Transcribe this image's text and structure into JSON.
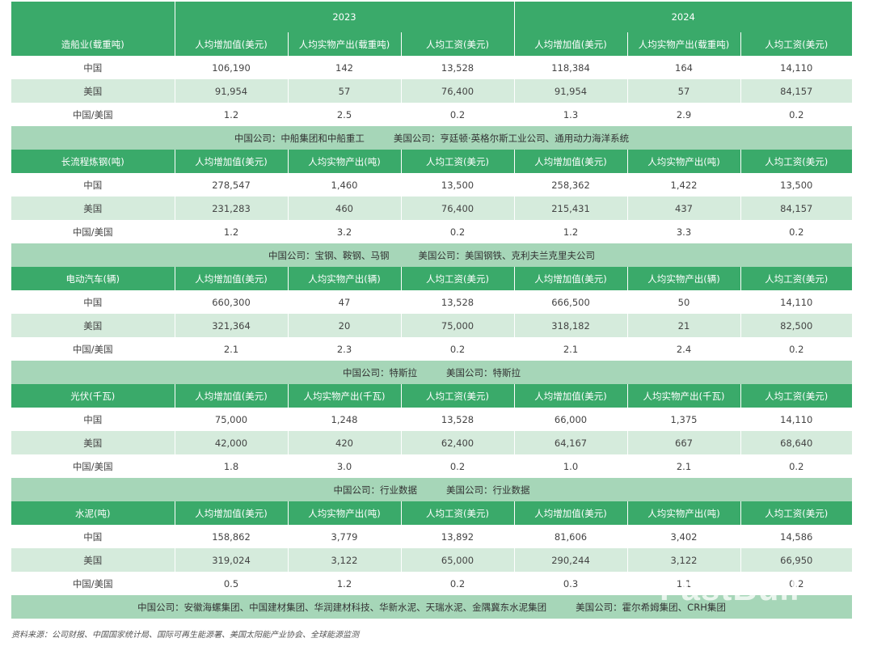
{
  "years": [
    "2023",
    "2024"
  ],
  "sections": [
    {
      "industry": "造船业(载重吨)",
      "headers": [
        "人均增加值(美元)",
        "人均实物产出(载重吨)",
        "人均工资(美元)",
        "人均增加值(美元)",
        "人均实物产出(载重吨)",
        "人均工资(美元)"
      ],
      "rows": [
        {
          "label": "中国",
          "values": [
            "106,190",
            "142",
            "13,528",
            "118,384",
            "164",
            "14,110"
          ]
        },
        {
          "label": "美国",
          "values": [
            "91,954",
            "57",
            "76,400",
            "91,954",
            "57",
            "84,157"
          ]
        },
        {
          "label": "中国/美国",
          "values": [
            "1.2",
            "2.5",
            "0.2",
            "1.3",
            "2.9",
            "0.2"
          ]
        }
      ],
      "note_cn": "中国公司：中船集团和中船重工",
      "note_us": "美国公司：亨廷顿·英格尔斯工业公司、通用动力海洋系统"
    },
    {
      "industry": "长流程炼钢(吨)",
      "headers": [
        "人均增加值(美元)",
        "人均实物产出(吨)",
        "人均工资(美元)",
        "人均增加值(美元)",
        "人均实物产出(吨)",
        "人均工资(美元)"
      ],
      "rows": [
        {
          "label": "中国",
          "values": [
            "278,547",
            "1,460",
            "13,500",
            "258,362",
            "1,422",
            "13,500"
          ]
        },
        {
          "label": "美国",
          "values": [
            "231,283",
            "460",
            "76,400",
            "215,431",
            "437",
            "84,157"
          ]
        },
        {
          "label": "中国/美国",
          "values": [
            "1.2",
            "3.2",
            "0.2",
            "1.2",
            "3.3",
            "0.2"
          ]
        }
      ],
      "note_cn": "中国公司：宝钢、鞍钢、马钢",
      "note_us": "美国公司：美国钢铁、克利夫兰克里夫公司"
    },
    {
      "industry": "电动汽车(辆)",
      "headers": [
        "人均增加值(美元)",
        "人均实物产出(辆)",
        "人均工资(美元)",
        "人均增加值(美元)",
        "人均实物产出(辆)",
        "人均工资(美元)"
      ],
      "rows": [
        {
          "label": "中国",
          "values": [
            "660,300",
            "47",
            "13,528",
            "666,500",
            "50",
            "14,110"
          ]
        },
        {
          "label": "美国",
          "values": [
            "321,364",
            "20",
            "75,000",
            "318,182",
            "21",
            "82,500"
          ]
        },
        {
          "label": "中国/美国",
          "values": [
            "2.1",
            "2.3",
            "0.2",
            "2.1",
            "2.4",
            "0.2"
          ]
        }
      ],
      "note_cn": "中国公司：特斯拉",
      "note_us": "美国公司：特斯拉"
    },
    {
      "industry": "光伏(千瓦)",
      "headers": [
        "人均增加值(美元)",
        "人均实物产出(千瓦)",
        "人均工资(美元)",
        "人均增加值(美元)",
        "人均实物产出(千瓦)",
        "人均工资(美元)"
      ],
      "rows": [
        {
          "label": "中国",
          "values": [
            "75,000",
            "1,248",
            "13,528",
            "66,000",
            "1,375",
            "14,110"
          ]
        },
        {
          "label": "美国",
          "values": [
            "42,000",
            "420",
            "62,400",
            "64,167",
            "667",
            "68,640"
          ]
        },
        {
          "label": "中国/美国",
          "values": [
            "1.8",
            "3.0",
            "0.2",
            "1.0",
            "2.1",
            "0.2"
          ]
        }
      ],
      "note_cn": "中国公司：行业数据",
      "note_us": "美国公司：行业数据"
    },
    {
      "industry": "水泥(吨)",
      "headers": [
        "人均增加值(美元)",
        "人均实物产出(吨)",
        "人均工资(美元)",
        "人均增加值(美元)",
        "人均实物产出(吨)",
        "人均工资(美元)"
      ],
      "rows": [
        {
          "label": "中国",
          "values": [
            "158,862",
            "3,779",
            "13,892",
            "81,606",
            "3,402",
            "14,586"
          ]
        },
        {
          "label": "美国",
          "values": [
            "319,024",
            "3,122",
            "65,000",
            "290,244",
            "3,122",
            "66,950"
          ]
        },
        {
          "label": "中国/美国",
          "values": [
            "0.5",
            "1.2",
            "0.2",
            "0.3",
            "1.1",
            "0.2"
          ]
        }
      ],
      "note_cn": "中国公司：安徽海螺集团、中国建材集团、华润建材科技、华新水泥、天瑞水泥、金隅冀东水泥集团",
      "note_us": "美国公司：霍尔希姆集团、CRH集团"
    }
  ],
  "source": "资料来源：公司财报、中国国家统计局、国际可再生能源署、美国太阳能产业协会、全球能源监测",
  "watermark": "FastBull"
}
